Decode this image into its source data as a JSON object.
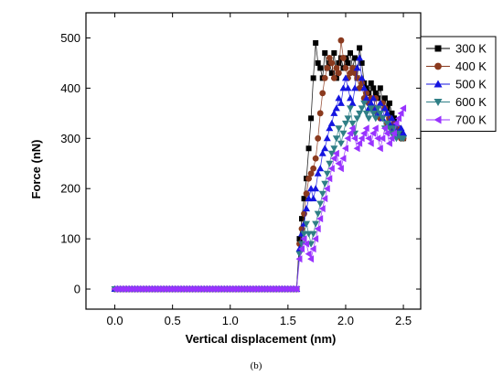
{
  "chart_data": {
    "type": "scatter",
    "xlabel": "Vertical displacement (nm)",
    "ylabel": "Force (nN)",
    "xlim": [
      -0.25,
      2.65
    ],
    "ylim": [
      -40,
      550
    ],
    "xticks": [
      0.0,
      0.5,
      1.0,
      1.5,
      2.0,
      2.5
    ],
    "xtick_labels": [
      "0.0",
      "0.5",
      "1.0",
      "1.5",
      "2.0",
      "2.5"
    ],
    "yticks": [
      0,
      100,
      200,
      300,
      400,
      500
    ],
    "ytick_labels": [
      "0",
      "100",
      "200",
      "300",
      "400",
      "500"
    ],
    "grid": false,
    "legend_position": "top-right",
    "caption": "(b)",
    "series": [
      {
        "name": "300 K",
        "color": "#000000",
        "marker": "square",
        "x": [
          1.6,
          1.62,
          1.64,
          1.66,
          1.68,
          1.7,
          1.72,
          1.74,
          1.76,
          1.78,
          1.8,
          1.82,
          1.84,
          1.86,
          1.88,
          1.9,
          1.92,
          1.94,
          1.96,
          1.98,
          2.0,
          2.02,
          2.04,
          2.06,
          2.08,
          2.1,
          2.12,
          2.14,
          2.16,
          2.18,
          2.2,
          2.22,
          2.24,
          2.26,
          2.28,
          2.3,
          2.32,
          2.34,
          2.36,
          2.38,
          2.4,
          2.42,
          2.44,
          2.46,
          2.48,
          2.5
        ],
        "y": [
          100,
          140,
          180,
          220,
          280,
          340,
          420,
          490,
          450,
          440,
          420,
          470,
          440,
          450,
          430,
          470,
          420,
          450,
          460,
          440,
          460,
          450,
          470,
          440,
          460,
          420,
          480,
          450,
          410,
          400,
          390,
          410,
          400,
          390,
          380,
          400,
          370,
          380,
          360,
          370,
          350,
          340,
          330,
          320,
          310,
          300
        ]
      },
      {
        "name": "400 K",
        "color": "#8B3A1E",
        "marker": "circle",
        "x": [
          1.6,
          1.62,
          1.64,
          1.66,
          1.68,
          1.7,
          1.72,
          1.74,
          1.76,
          1.78,
          1.8,
          1.82,
          1.84,
          1.86,
          1.88,
          1.9,
          1.92,
          1.94,
          1.96,
          1.98,
          2.0,
          2.02,
          2.04,
          2.06,
          2.08,
          2.1,
          2.12,
          2.14,
          2.16,
          2.18,
          2.2,
          2.22,
          2.24,
          2.26,
          2.28,
          2.3,
          2.32,
          2.34,
          2.36,
          2.38,
          2.4,
          2.42,
          2.44,
          2.46,
          2.48,
          2.5
        ],
        "y": [
          90,
          120,
          150,
          190,
          220,
          230,
          240,
          260,
          300,
          350,
          390,
          420,
          440,
          460,
          450,
          420,
          440,
          430,
          495,
          460,
          440,
          420,
          430,
          440,
          430,
          420,
          400,
          410,
          380,
          390,
          370,
          380,
          360,
          380,
          350,
          340,
          370,
          360,
          330,
          340,
          320,
          330,
          310,
          320,
          300,
          300
        ]
      },
      {
        "name": "500 K",
        "color": "#1515E0",
        "marker": "triangle-up",
        "x": [
          1.6,
          1.62,
          1.64,
          1.66,
          1.68,
          1.7,
          1.72,
          1.74,
          1.76,
          1.78,
          1.8,
          1.82,
          1.84,
          1.86,
          1.88,
          1.9,
          1.92,
          1.94,
          1.96,
          1.98,
          2.0,
          2.02,
          2.04,
          2.06,
          2.08,
          2.1,
          2.12,
          2.14,
          2.16,
          2.18,
          2.2,
          2.22,
          2.24,
          2.26,
          2.28,
          2.3,
          2.32,
          2.34,
          2.36,
          2.38,
          2.4,
          2.42,
          2.44,
          2.46,
          2.48,
          2.5
        ],
        "y": [
          80,
          110,
          130,
          160,
          180,
          200,
          180,
          200,
          230,
          240,
          270,
          280,
          300,
          320,
          330,
          350,
          360,
          380,
          370,
          400,
          420,
          400,
          380,
          370,
          400,
          440,
          460,
          420,
          400,
          380,
          360,
          370,
          380,
          360,
          350,
          370,
          340,
          360,
          350,
          330,
          340,
          320,
          330,
          310,
          320,
          310
        ]
      },
      {
        "name": "600 K",
        "color": "#2F7F86",
        "marker": "triangle-down",
        "x": [
          1.6,
          1.62,
          1.64,
          1.66,
          1.68,
          1.7,
          1.72,
          1.74,
          1.76,
          1.78,
          1.8,
          1.82,
          1.84,
          1.86,
          1.88,
          1.9,
          1.92,
          1.94,
          1.96,
          1.98,
          2.0,
          2.02,
          2.04,
          2.06,
          2.08,
          2.1,
          2.12,
          2.14,
          2.16,
          2.18,
          2.2,
          2.22,
          2.24,
          2.26,
          2.28,
          2.3,
          2.32,
          2.34,
          2.36,
          2.38,
          2.4,
          2.42,
          2.44,
          2.46,
          2.48,
          2.5
        ],
        "y": [
          70,
          90,
          110,
          130,
          110,
          90,
          110,
          130,
          150,
          170,
          190,
          210,
          230,
          250,
          270,
          280,
          300,
          320,
          290,
          310,
          330,
          340,
          360,
          330,
          310,
          340,
          350,
          360,
          370,
          350,
          340,
          360,
          350,
          340,
          360,
          350,
          340,
          320,
          330,
          320,
          310,
          320,
          300,
          310,
          300,
          300
        ]
      },
      {
        "name": "700 K",
        "color": "#9933FF",
        "marker": "triangle-left",
        "x": [
          1.6,
          1.62,
          1.64,
          1.66,
          1.68,
          1.7,
          1.72,
          1.74,
          1.76,
          1.78,
          1.8,
          1.82,
          1.84,
          1.86,
          1.88,
          1.9,
          1.92,
          1.94,
          1.96,
          1.98,
          2.0,
          2.02,
          2.04,
          2.06,
          2.08,
          2.1,
          2.12,
          2.14,
          2.16,
          2.18,
          2.2,
          2.22,
          2.24,
          2.26,
          2.28,
          2.3,
          2.32,
          2.34,
          2.36,
          2.38,
          2.4,
          2.42,
          2.44,
          2.46,
          2.48,
          2.5
        ],
        "y": [
          60,
          80,
          100,
          90,
          70,
          60,
          80,
          100,
          120,
          140,
          160,
          180,
          200,
          220,
          240,
          260,
          270,
          250,
          240,
          260,
          280,
          300,
          310,
          320,
          300,
          280,
          290,
          300,
          310,
          320,
          300,
          290,
          310,
          320,
          300,
          280,
          300,
          320,
          310,
          290,
          300,
          310,
          330,
          340,
          350,
          360
        ]
      }
    ]
  }
}
